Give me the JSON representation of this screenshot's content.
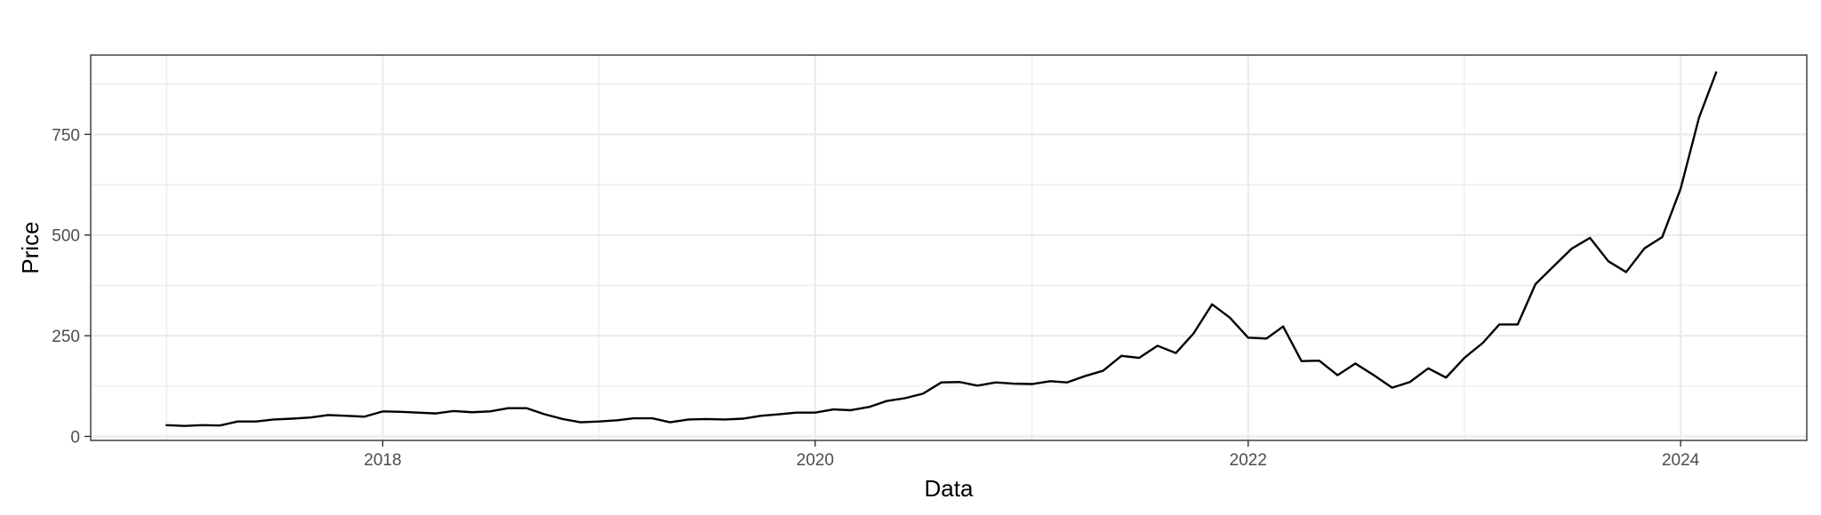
{
  "chart_data": {
    "type": "line",
    "title": "",
    "xlabel": "Data",
    "ylabel": "Price",
    "x_axis": "date",
    "xlim": [
      "2016-08-26",
      "2024-08-01"
    ],
    "ylim": [
      -10,
      947
    ],
    "x_ticks": [
      {
        "value": "2018-01-01",
        "label": "2018"
      },
      {
        "value": "2020-01-01",
        "label": "2020"
      },
      {
        "value": "2022-01-01",
        "label": "2022"
      },
      {
        "value": "2024-01-01",
        "label": "2024"
      }
    ],
    "x_minor_ticks": [
      "2017-01-01",
      "2019-01-01",
      "2021-01-01",
      "2023-01-01"
    ],
    "y_ticks": [
      {
        "value": 0,
        "label": "0"
      },
      {
        "value": 250,
        "label": "250"
      },
      {
        "value": 500,
        "label": "500"
      },
      {
        "value": 750,
        "label": "750"
      }
    ],
    "y_minor_ticks": [
      125,
      375,
      625,
      875
    ],
    "grid": true,
    "legend": "none",
    "colors": {
      "line": "#000000",
      "grid": "#ebebeb",
      "panel_border": "#333333",
      "tick_label": "#4d4d4d"
    },
    "series": [
      {
        "x": [
          "2017-01-01",
          "2017-02-01",
          "2017-03-01",
          "2017-04-01",
          "2017-05-01",
          "2017-06-01",
          "2017-07-01",
          "2017-08-01",
          "2017-09-01",
          "2017-10-01",
          "2017-11-01",
          "2017-12-01",
          "2018-01-01",
          "2018-02-01",
          "2018-03-01",
          "2018-04-01",
          "2018-05-01",
          "2018-06-01",
          "2018-07-01",
          "2018-08-01",
          "2018-09-01",
          "2018-10-01",
          "2018-11-01",
          "2018-12-01",
          "2019-01-01",
          "2019-02-01",
          "2019-03-01",
          "2019-04-01",
          "2019-05-01",
          "2019-06-01",
          "2019-07-01",
          "2019-08-01",
          "2019-09-01",
          "2019-10-01",
          "2019-11-01",
          "2019-12-01",
          "2020-01-01",
          "2020-02-01",
          "2020-03-01",
          "2020-04-01",
          "2020-05-01",
          "2020-06-01",
          "2020-07-01",
          "2020-08-01",
          "2020-09-01",
          "2020-10-01",
          "2020-11-01",
          "2020-12-01",
          "2021-01-01",
          "2021-02-01",
          "2021-03-01",
          "2021-04-01",
          "2021-05-01",
          "2021-06-01",
          "2021-07-01",
          "2021-08-01",
          "2021-09-01",
          "2021-10-01",
          "2021-11-01",
          "2021-12-01",
          "2022-01-01",
          "2022-02-01",
          "2022-03-01",
          "2022-04-01",
          "2022-05-01",
          "2022-06-01",
          "2022-07-01",
          "2022-08-01",
          "2022-09-01",
          "2022-10-01",
          "2022-11-01",
          "2022-12-01",
          "2023-01-01",
          "2023-02-01",
          "2023-03-01",
          "2023-04-01",
          "2023-05-01",
          "2023-06-01",
          "2023-07-01",
          "2023-08-01",
          "2023-09-01",
          "2023-10-01",
          "2023-11-01",
          "2023-12-01",
          "2024-01-01",
          "2024-02-01",
          "2024-03-01"
        ],
        "y": [
          28,
          26,
          28,
          27,
          37,
          37,
          42,
          44,
          47,
          53,
          51,
          49,
          62,
          61,
          59,
          57,
          63,
          60,
          62,
          70,
          70,
          55,
          43,
          35,
          37,
          40,
          45,
          45,
          35,
          42,
          43,
          42,
          44,
          51,
          55,
          59,
          59,
          67,
          65,
          73,
          88,
          95,
          106,
          134,
          135,
          126,
          134,
          131,
          130,
          137,
          134,
          150,
          163,
          200,
          195,
          225,
          207,
          256,
          328,
          295,
          245,
          243,
          273,
          187,
          188,
          152,
          181,
          152,
          121,
          135,
          169,
          146,
          195,
          232,
          278,
          278,
          378,
          423,
          466,
          493,
          435,
          408,
          467,
          495,
          615,
          791,
          904
        ]
      }
    ]
  }
}
